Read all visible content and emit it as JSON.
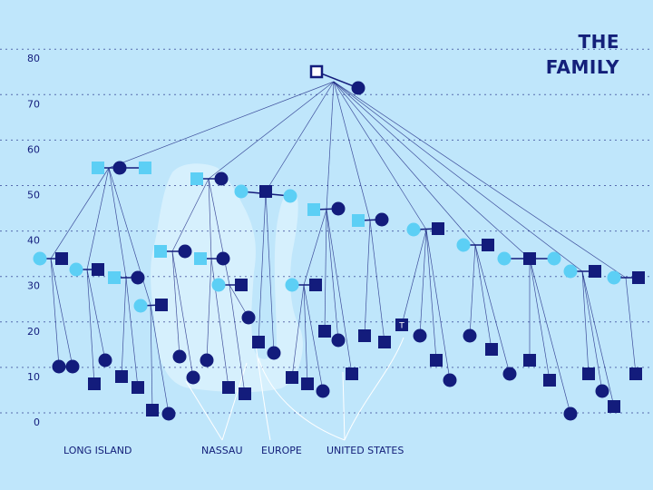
{
  "title": "THE FAMILY",
  "axis": {
    "ticks": [
      0,
      10,
      20,
      30,
      40,
      50,
      60,
      70,
      80
    ]
  },
  "node_label": "T",
  "regions": [
    "LONG ISLAND",
    "NASSAU",
    "EUROPE",
    "UNITED STATES"
  ]
}
